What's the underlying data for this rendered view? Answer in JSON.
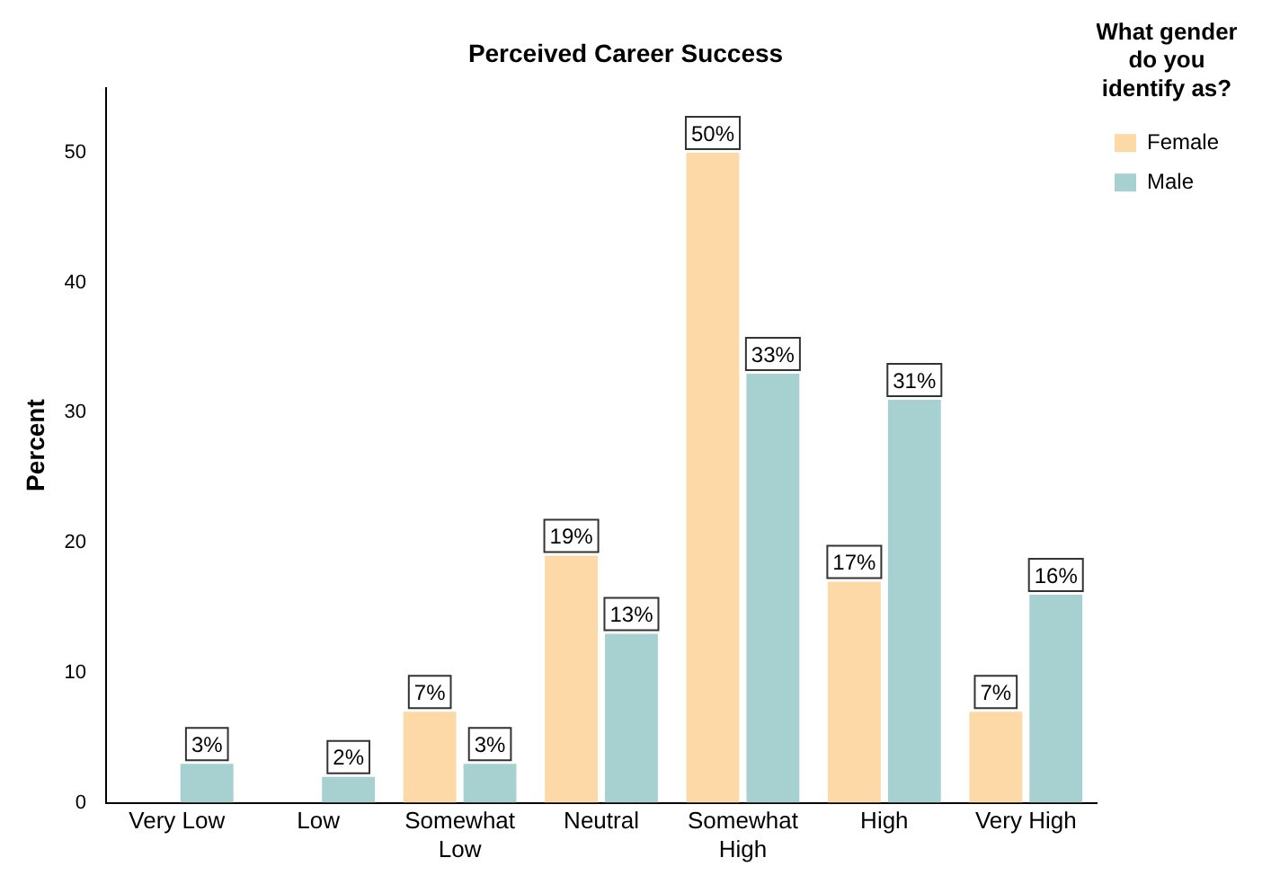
{
  "chart_data": {
    "type": "bar",
    "title": "Perceived Career Success",
    "ylabel": "Percent",
    "legend_title": "What gender do you identify as?",
    "categories": [
      "Very Low",
      "Low",
      "Somewhat Low",
      "Neutral",
      "Somewhat High",
      "High",
      "Very High"
    ],
    "series": [
      {
        "name": "Female",
        "color": "#fdd9a7",
        "values": [
          null,
          null,
          7,
          19,
          50,
          17,
          7
        ],
        "value_labels": [
          null,
          null,
          "7%",
          "19%",
          "50%",
          "17%",
          "7%"
        ]
      },
      {
        "name": "Male",
        "color": "#a6d1d0",
        "values": [
          3,
          2,
          3,
          13,
          33,
          31,
          16
        ],
        "value_labels": [
          "3%",
          "2%",
          "3%",
          "13%",
          "33%",
          "31%",
          "16%"
        ]
      }
    ],
    "ylim": [
      0,
      55
    ],
    "yticks": [
      0,
      10,
      20,
      30,
      40,
      50
    ],
    "grid": false,
    "legend": "top right"
  }
}
